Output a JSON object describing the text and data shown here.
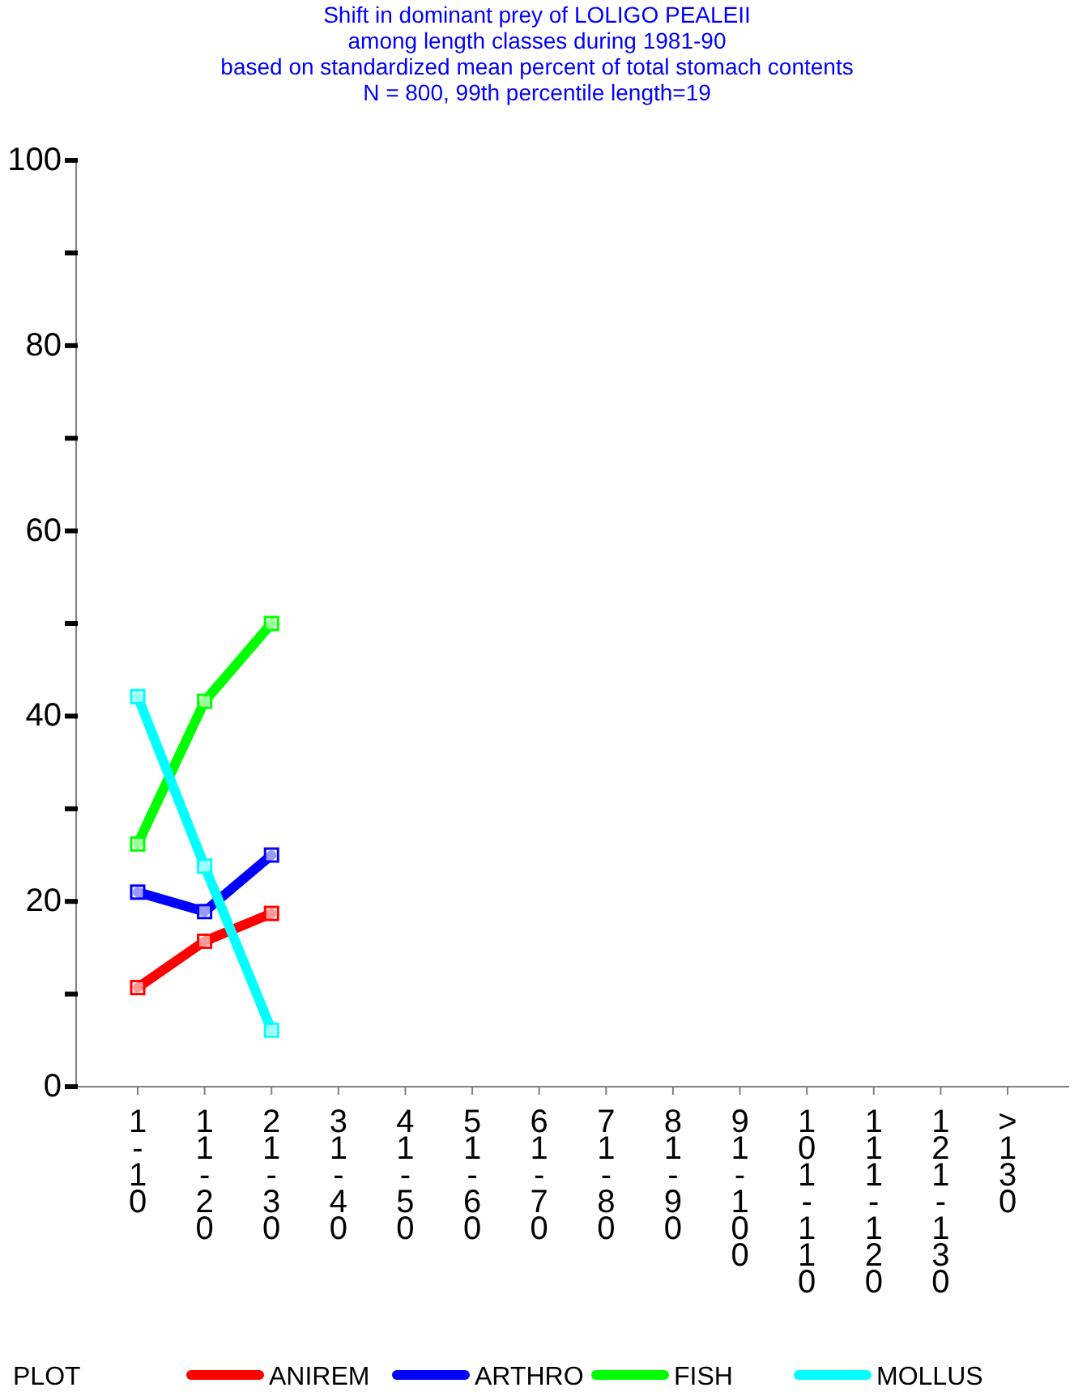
{
  "chart_data": {
    "type": "line",
    "title": "Shift in dominant prey of LOLIGO PEALEII\namong length classes during 1981-90\nbased on standardized mean percent of  total stomach contents\nN = 800, 99th percentile  length=19",
    "categories": [
      "1-10",
      "11-20",
      "21-30",
      "31-40",
      "41-50",
      "51-60",
      "61-70",
      "71-80",
      "81-90",
      "91-100",
      "101-110",
      "111-120",
      "121-130",
      ">130"
    ],
    "series": [
      {
        "name": "ANIREM",
        "color": "#ff0000",
        "values": [
          10.7,
          15.7,
          18.7,
          null,
          null,
          null,
          null,
          null,
          null,
          null,
          null,
          null,
          null,
          null
        ]
      },
      {
        "name": "ARTHRO",
        "color": "#0000ff",
        "values": [
          21,
          18.9,
          25,
          null,
          null,
          null,
          null,
          null,
          null,
          null,
          null,
          null,
          null,
          null
        ]
      },
      {
        "name": "FISH",
        "color": "#00ff00",
        "values": [
          26.2,
          41.6,
          50,
          null,
          null,
          null,
          null,
          null,
          null,
          null,
          null,
          null,
          null,
          null
        ]
      },
      {
        "name": "MOLLUS",
        "color": "#00ffff",
        "values": [
          42.1,
          23.8,
          6.1,
          null,
          null,
          null,
          null,
          null,
          null,
          null,
          null,
          null,
          null,
          null
        ]
      }
    ],
    "legend_title": "PLOT",
    "legend": "bottom",
    "marker": "square",
    "grid": false,
    "ylim": [
      0,
      100
    ],
    "yticks": [
      0,
      {
        "value": 10,
        "label": null
      },
      20,
      {
        "value": 30,
        "label": null
      },
      40,
      {
        "value": 50,
        "label": null
      },
      60,
      {
        "value": 70,
        "label": null
      },
      80,
      {
        "value": 90,
        "label": null
      },
      100
    ]
  }
}
